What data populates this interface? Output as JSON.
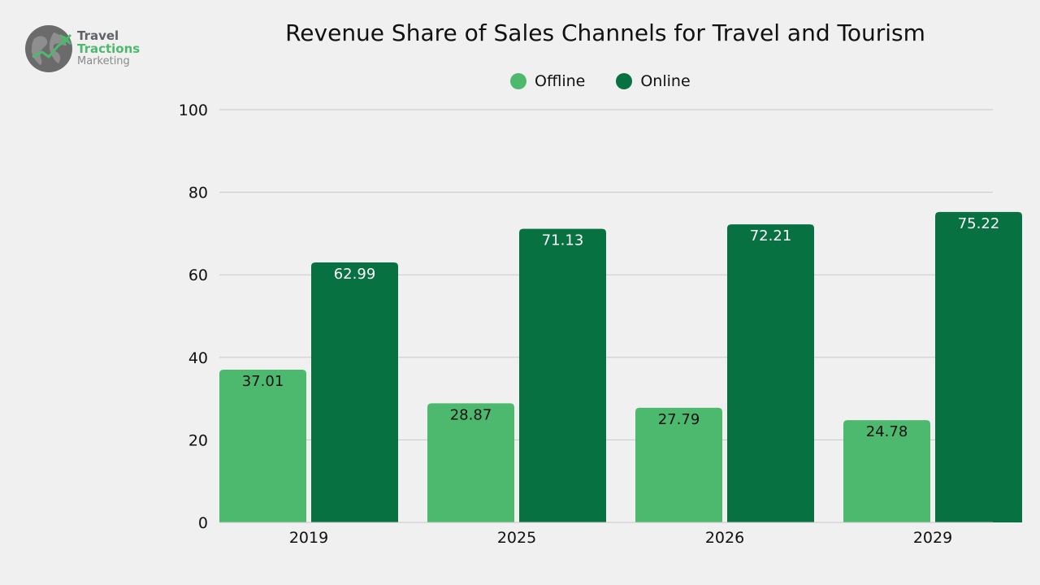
{
  "logo": {
    "line1": "Travel",
    "line2": "Tractions",
    "line3": "Marketing"
  },
  "colors": {
    "offline": "#4cb96f",
    "online": "#087141",
    "grid": "#c8c8c8",
    "background": "#f0f0f0"
  },
  "chart_data": {
    "type": "bar",
    "title": "Revenue Share of Sales Channels for Travel and Tourism",
    "xlabel": "",
    "ylabel": "",
    "categories": [
      "2019",
      "2025",
      "2026",
      "2029"
    ],
    "series": [
      {
        "name": "Offline",
        "values": [
          37.01,
          28.87,
          27.79,
          24.78
        ],
        "labels": [
          "37.01",
          "28.87",
          "27.79",
          "24.78"
        ]
      },
      {
        "name": "Online",
        "values": [
          62.99,
          71.13,
          72.21,
          75.22
        ],
        "labels": [
          "62.99",
          "71.13",
          "72.21",
          "75.22"
        ]
      }
    ],
    "ylim": [
      0,
      100
    ],
    "yticks": [
      "0",
      "20",
      "40",
      "60",
      "80",
      "100"
    ],
    "grid": true,
    "legend": "top-center"
  }
}
